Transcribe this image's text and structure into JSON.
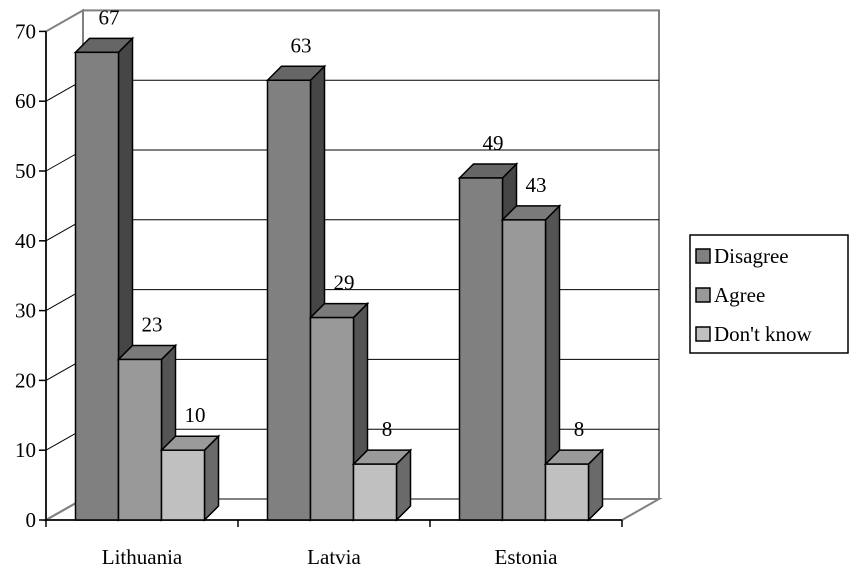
{
  "chart_data": {
    "type": "bar",
    "title": "",
    "xlabel": "",
    "ylabel": "",
    "categories": [
      "Lithuania",
      "Latvia",
      "Estonia"
    ],
    "series": [
      {
        "name": "Disagree",
        "values": [
          67,
          63,
          49
        ],
        "color": "#808080"
      },
      {
        "name": "Agree",
        "values": [
          23,
          29,
          43
        ],
        "color": "#999999"
      },
      {
        "name": "Don't know",
        "values": [
          10,
          8,
          8
        ],
        "color": "#c0c0c0"
      }
    ],
    "ylim": [
      0,
      70
    ],
    "yticks": [
      0,
      10,
      20,
      30,
      40,
      50,
      60,
      70
    ],
    "grid": true,
    "legend": "right",
    "style": "3d-bars"
  }
}
